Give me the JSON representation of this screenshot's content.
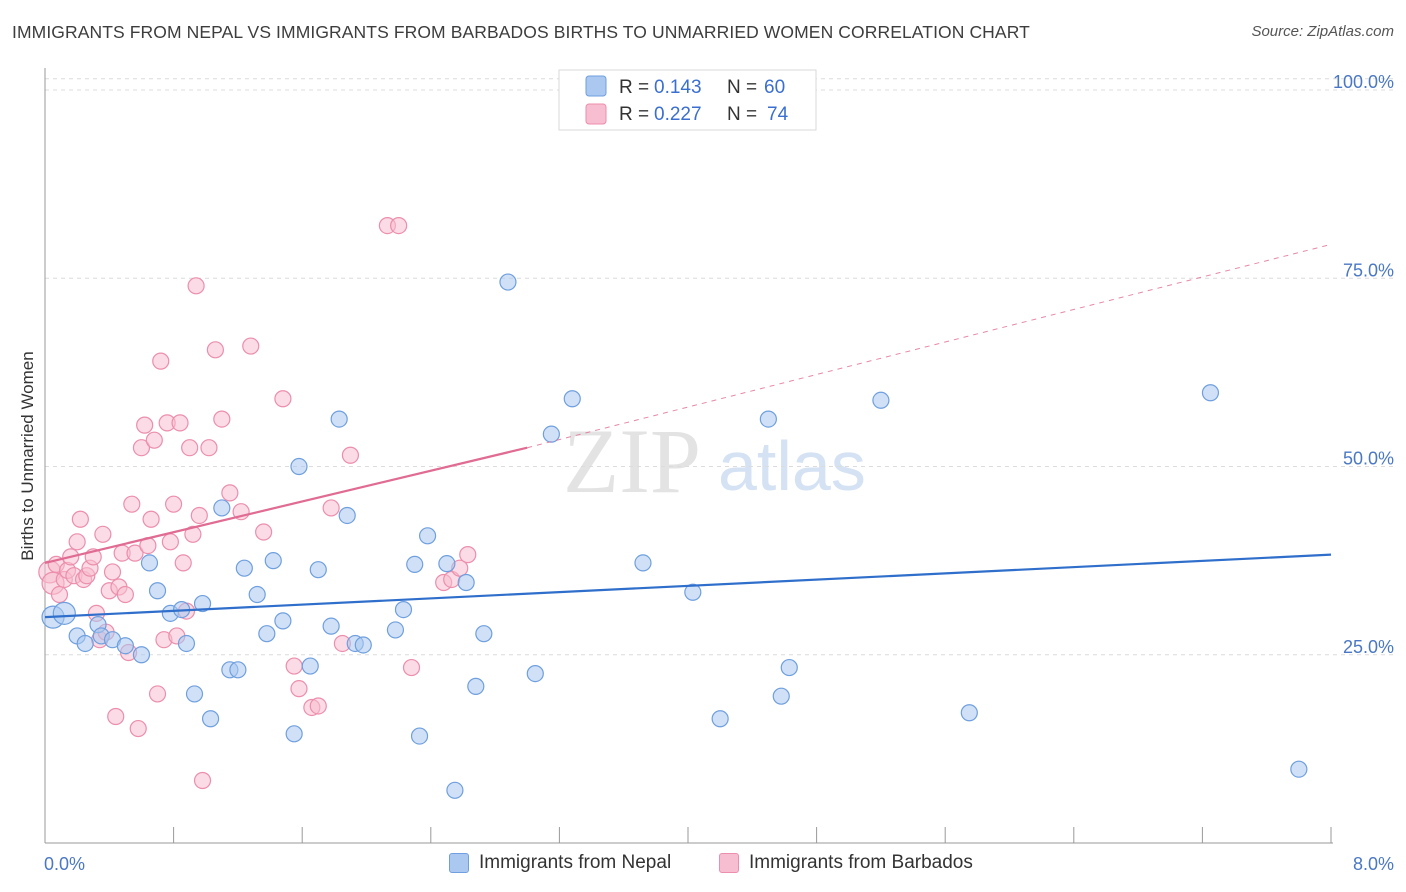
{
  "title": "IMMIGRANTS FROM NEPAL VS IMMIGRANTS FROM BARBADOS BIRTHS TO UNMARRIED WOMEN CORRELATION CHART",
  "source": "Source: ZipAtlas.com",
  "watermark": {
    "zip": "ZIP",
    "atlas": "atlas"
  },
  "legend_stats": [
    {
      "r_label": "R =",
      "r_value": "0.143",
      "n_label": "N =",
      "n_value": "60"
    },
    {
      "r_label": "R =",
      "r_value": "0.227",
      "n_label": "N =",
      "n_value": "74"
    }
  ],
  "colors": {
    "nepal_fill": "#aac8f0",
    "nepal_stroke": "#6f9fde",
    "nepal_line": "#2f6fcb",
    "barbados_fill": "#f7bdd0",
    "barbados_stroke": "#ec8eac",
    "barbados_line": "#e06b93",
    "axis_text": "#4a78c4",
    "grid": "#dcdcdc"
  },
  "chart_data": {
    "type": "scatter",
    "title": "IMMIGRANTS FROM NEPAL VS IMMIGRANTS FROM BARBADOS BIRTHS TO UNMARRIED WOMEN CORRELATION CHART",
    "xlabel": "",
    "ylabel": "Births to Unmarried Women",
    "xlim": [
      0,
      8
    ],
    "ylim": [
      0,
      102
    ],
    "x_tick_labels": [
      "0.0%",
      "8.0%"
    ],
    "y_ticks": [
      25,
      50,
      75,
      100
    ],
    "y_tick_labels": [
      "25.0%",
      "50.0%",
      "75.0%",
      "100.0%"
    ],
    "legend": [
      "Immigrants from Nepal",
      "Immigrants from Barbados"
    ],
    "series": [
      {
        "name": "Immigrants from Nepal",
        "r": 0.143,
        "n": 60,
        "trend": {
          "x0": 0.0,
          "y0": 30.0,
          "x1": 8.0,
          "y1": 38.3,
          "dashed_to": null
        },
        "points": [
          [
            0.05,
            30
          ],
          [
            0.12,
            30.5
          ],
          [
            0.2,
            27.5
          ],
          [
            0.25,
            26.5
          ],
          [
            0.33,
            29
          ],
          [
            0.35,
            27.5
          ],
          [
            0.42,
            27
          ],
          [
            0.5,
            26.2
          ],
          [
            0.6,
            25
          ],
          [
            0.65,
            37.2
          ],
          [
            0.7,
            33.5
          ],
          [
            0.78,
            30.5
          ],
          [
            0.85,
            31
          ],
          [
            0.88,
            26.5
          ],
          [
            0.93,
            19.8
          ],
          [
            0.98,
            31.8
          ],
          [
            1.03,
            16.5
          ],
          [
            1.1,
            44.5
          ],
          [
            1.15,
            23
          ],
          [
            1.2,
            23
          ],
          [
            1.24,
            36.5
          ],
          [
            1.32,
            33
          ],
          [
            1.38,
            27.8
          ],
          [
            1.42,
            37.5
          ],
          [
            1.48,
            29.5
          ],
          [
            1.55,
            14.5
          ],
          [
            1.58,
            50
          ],
          [
            1.65,
            23.5
          ],
          [
            1.7,
            36.3
          ],
          [
            1.78,
            28.8
          ],
          [
            1.83,
            56.3
          ],
          [
            1.88,
            43.5
          ],
          [
            1.93,
            26.5
          ],
          [
            1.98,
            26.3
          ],
          [
            2.18,
            28.3
          ],
          [
            2.23,
            31
          ],
          [
            2.3,
            37
          ],
          [
            2.33,
            14.2
          ],
          [
            2.38,
            40.8
          ],
          [
            2.5,
            37.1
          ],
          [
            2.55,
            7
          ],
          [
            2.62,
            34.6
          ],
          [
            2.68,
            20.8
          ],
          [
            2.73,
            27.8
          ],
          [
            2.88,
            74.5
          ],
          [
            3.05,
            22.5
          ],
          [
            3.15,
            54.3
          ],
          [
            3.28,
            59
          ],
          [
            3.72,
            37.2
          ],
          [
            4.03,
            33.3
          ],
          [
            4.2,
            16.5
          ],
          [
            4.5,
            56.3
          ],
          [
            4.58,
            19.5
          ],
          [
            4.63,
            23.3
          ],
          [
            5.2,
            58.8
          ],
          [
            5.75,
            17.3
          ],
          [
            7.25,
            59.8
          ],
          [
            7.8,
            9.8
          ]
        ]
      },
      {
        "name": "Immigrants from Barbados",
        "r": 0.227,
        "n": 74,
        "trend": {
          "x0": 0.0,
          "y0": 37.2,
          "x1": 3.0,
          "y1": 52.5,
          "dashed_to": {
            "x": 8.0,
            "y": 79.5
          }
        },
        "points": [
          [
            0.03,
            36
          ],
          [
            0.05,
            34.5
          ],
          [
            0.07,
            37
          ],
          [
            0.09,
            33
          ],
          [
            0.12,
            35
          ],
          [
            0.14,
            36.2
          ],
          [
            0.16,
            38
          ],
          [
            0.18,
            35.5
          ],
          [
            0.2,
            40
          ],
          [
            0.22,
            43
          ],
          [
            0.24,
            35
          ],
          [
            0.26,
            35.5
          ],
          [
            0.28,
            36.5
          ],
          [
            0.3,
            38
          ],
          [
            0.32,
            30.5
          ],
          [
            0.34,
            27
          ],
          [
            0.36,
            41
          ],
          [
            0.38,
            28
          ],
          [
            0.4,
            33.5
          ],
          [
            0.42,
            36
          ],
          [
            0.44,
            16.8
          ],
          [
            0.46,
            34
          ],
          [
            0.48,
            38.5
          ],
          [
            0.5,
            33
          ],
          [
            0.52,
            25.3
          ],
          [
            0.54,
            45
          ],
          [
            0.56,
            38.5
          ],
          [
            0.58,
            15.2
          ],
          [
            0.6,
            52.5
          ],
          [
            0.62,
            55.5
          ],
          [
            0.64,
            39.5
          ],
          [
            0.66,
            43
          ],
          [
            0.68,
            53.5
          ],
          [
            0.7,
            19.8
          ],
          [
            0.72,
            64
          ],
          [
            0.74,
            27
          ],
          [
            0.76,
            55.8
          ],
          [
            0.78,
            40
          ],
          [
            0.8,
            45
          ],
          [
            0.82,
            27.5
          ],
          [
            0.84,
            55.8
          ],
          [
            0.86,
            37.2
          ],
          [
            0.88,
            30.8
          ],
          [
            0.9,
            52.5
          ],
          [
            0.92,
            41
          ],
          [
            0.94,
            74
          ],
          [
            0.96,
            43.5
          ],
          [
            0.98,
            8.3
          ],
          [
            1.02,
            52.5
          ],
          [
            1.06,
            65.5
          ],
          [
            1.1,
            56.3
          ],
          [
            1.15,
            46.5
          ],
          [
            1.22,
            44
          ],
          [
            1.28,
            66
          ],
          [
            1.36,
            41.3
          ],
          [
            1.48,
            59
          ],
          [
            1.55,
            23.5
          ],
          [
            1.58,
            20.5
          ],
          [
            1.66,
            18
          ],
          [
            1.7,
            18.2
          ],
          [
            1.78,
            44.5
          ],
          [
            1.85,
            26.5
          ],
          [
            1.9,
            51.5
          ],
          [
            2.13,
            82
          ],
          [
            2.2,
            82
          ],
          [
            2.28,
            23.3
          ],
          [
            2.48,
            34.6
          ],
          [
            2.53,
            35
          ],
          [
            2.58,
            36.5
          ],
          [
            2.63,
            38.3
          ]
        ]
      }
    ]
  }
}
